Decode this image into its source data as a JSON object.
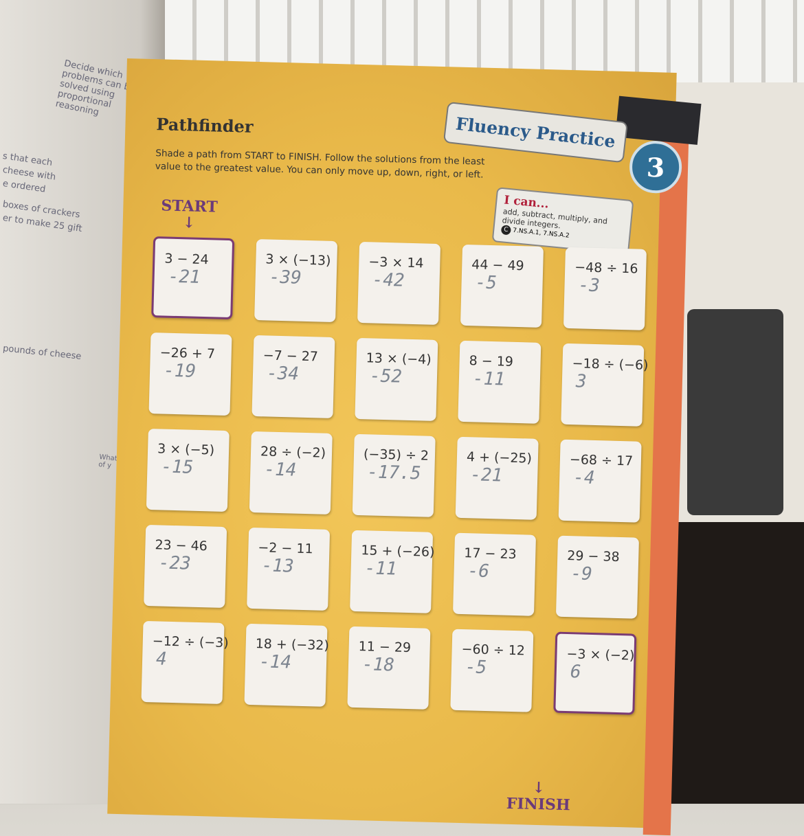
{
  "left_page": {
    "fragments": [
      "Decide which problems can be solved using proportional reasoning",
      "s that each",
      "cheese with",
      "e ordered",
      "boxes of crackers",
      "er to make 25 gift",
      "pounds of cheese",
      "What is the value of y"
    ]
  },
  "header": {
    "title": "Pathfinder",
    "instructions": "Shade a path from START to FINISH. Follow the solutions from the least value to the greatest value. You can only move up, down, right, or left.",
    "banner": "Fluency Practice",
    "topic_number": "3"
  },
  "ican": {
    "heading": "I can...",
    "text": "add, subtract, multiply, and divide integers.",
    "standards_icon": "C",
    "standards": "7.NS.A.1, 7.NS.A.2"
  },
  "start_label": "START",
  "finish_label": "FINISH",
  "grid": [
    [
      {
        "p": "3 − 24",
        "a": "-21"
      },
      {
        "p": "3 × (−13)",
        "a": "-39"
      },
      {
        "p": "−3 × 14",
        "a": "-42"
      },
      {
        "p": "44 − 49",
        "a": "-5"
      },
      {
        "p": "−48 ÷ 16",
        "a": "-3"
      }
    ],
    [
      {
        "p": "−26 + 7",
        "a": "-19"
      },
      {
        "p": "−7 − 27",
        "a": "-34"
      },
      {
        "p": "13 × (−4)",
        "a": "-52"
      },
      {
        "p": "8 − 19",
        "a": "-11"
      },
      {
        "p": "−18 ÷ (−6)",
        "a": "3"
      }
    ],
    [
      {
        "p": "3 × (−5)",
        "a": "-15"
      },
      {
        "p": "28 ÷ (−2)",
        "a": "-14"
      },
      {
        "p": "(−35) ÷ 2",
        "a": "-17.5"
      },
      {
        "p": "4 + (−25)",
        "a": "-21"
      },
      {
        "p": "−68 ÷ 17",
        "a": "-4"
      }
    ],
    [
      {
        "p": "23 − 46",
        "a": "-23"
      },
      {
        "p": "−2 − 11",
        "a": "-13"
      },
      {
        "p": "15 + (−26)",
        "a": "-11"
      },
      {
        "p": "17 − 23",
        "a": "-6"
      },
      {
        "p": "29 − 38",
        "a": "-9"
      }
    ],
    [
      {
        "p": "−12 ÷ (−3)",
        "a": "4"
      },
      {
        "p": "18 + (−32)",
        "a": "-14"
      },
      {
        "p": "11 − 29",
        "a": "-18"
      },
      {
        "p": "−60 ÷ 12",
        "a": "-5"
      },
      {
        "p": "−3 × (−2)",
        "a": "6"
      }
    ]
  ],
  "colors": {
    "page": "#e9b94a",
    "accent_purple": "#6a3a7a",
    "banner_blue": "#2b5a8a",
    "ican_red": "#b0203a"
  }
}
